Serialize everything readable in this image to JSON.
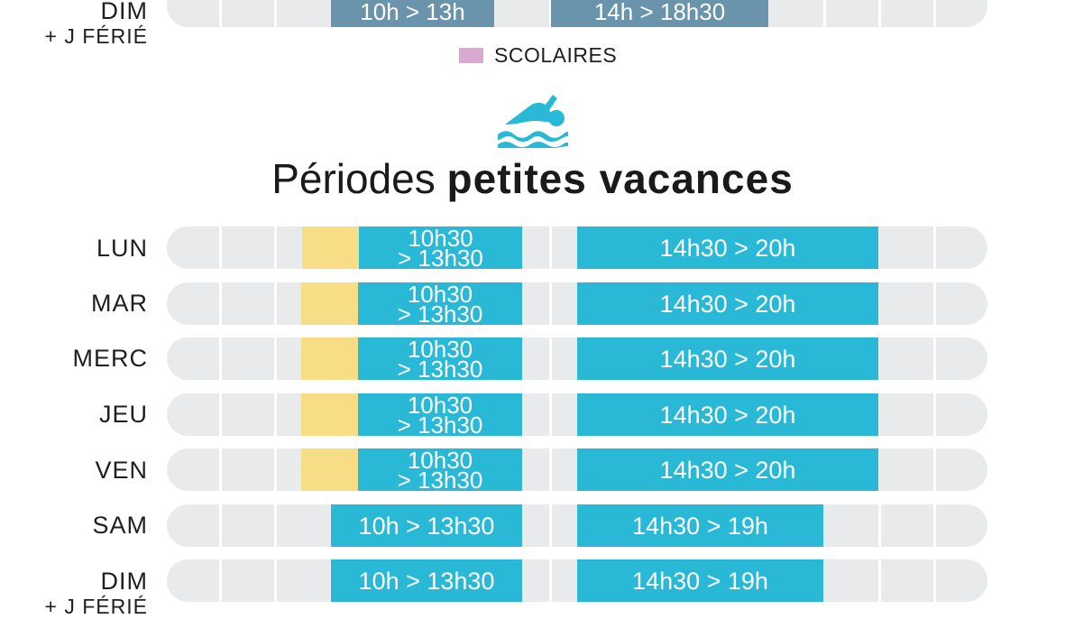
{
  "top_section": {
    "day_line1": "DIM",
    "day_line2": "+ J FÉRIÉ",
    "slot_morning": "10h > 13h",
    "slot_afternoon": "14h > 18h30"
  },
  "legend": {
    "label": "SCOLAIRES",
    "color": "#dba9cf"
  },
  "icon": "swimmer-icon",
  "title": {
    "regular": "Périodes ",
    "bold": "petites vacances"
  },
  "colors": {
    "track": "#e8eaec",
    "open_slot": "#29b9d6",
    "school_slot": "#f7de86",
    "top_slot": "#6a94ab"
  },
  "rows": [
    {
      "day": "LUN",
      "morning_line1": "10h30",
      "morning_line2": "> 13h30",
      "afternoon": "14h30 > 20h"
    },
    {
      "day": "MAR",
      "morning_line1": "10h30",
      "morning_line2": "> 13h30",
      "afternoon": "14h30 > 20h"
    },
    {
      "day": "MERC",
      "morning_line1": "10h30",
      "morning_line2": "> 13h30",
      "afternoon": "14h30 > 20h"
    },
    {
      "day": "JEU",
      "morning_line1": "10h30",
      "morning_line2": "> 13h30",
      "afternoon": "14h30 > 20h"
    },
    {
      "day": "VEN",
      "morning_line1": "10h30",
      "morning_line2": "> 13h30",
      "afternoon": "14h30 > 20h"
    },
    {
      "day": "SAM",
      "morning": "10h > 13h30",
      "afternoon": "14h30 > 19h"
    },
    {
      "day": "DIM",
      "day_line2": "+ J FÉRIÉ",
      "morning": "10h > 13h30",
      "afternoon": "14h30 > 19h"
    }
  ]
}
